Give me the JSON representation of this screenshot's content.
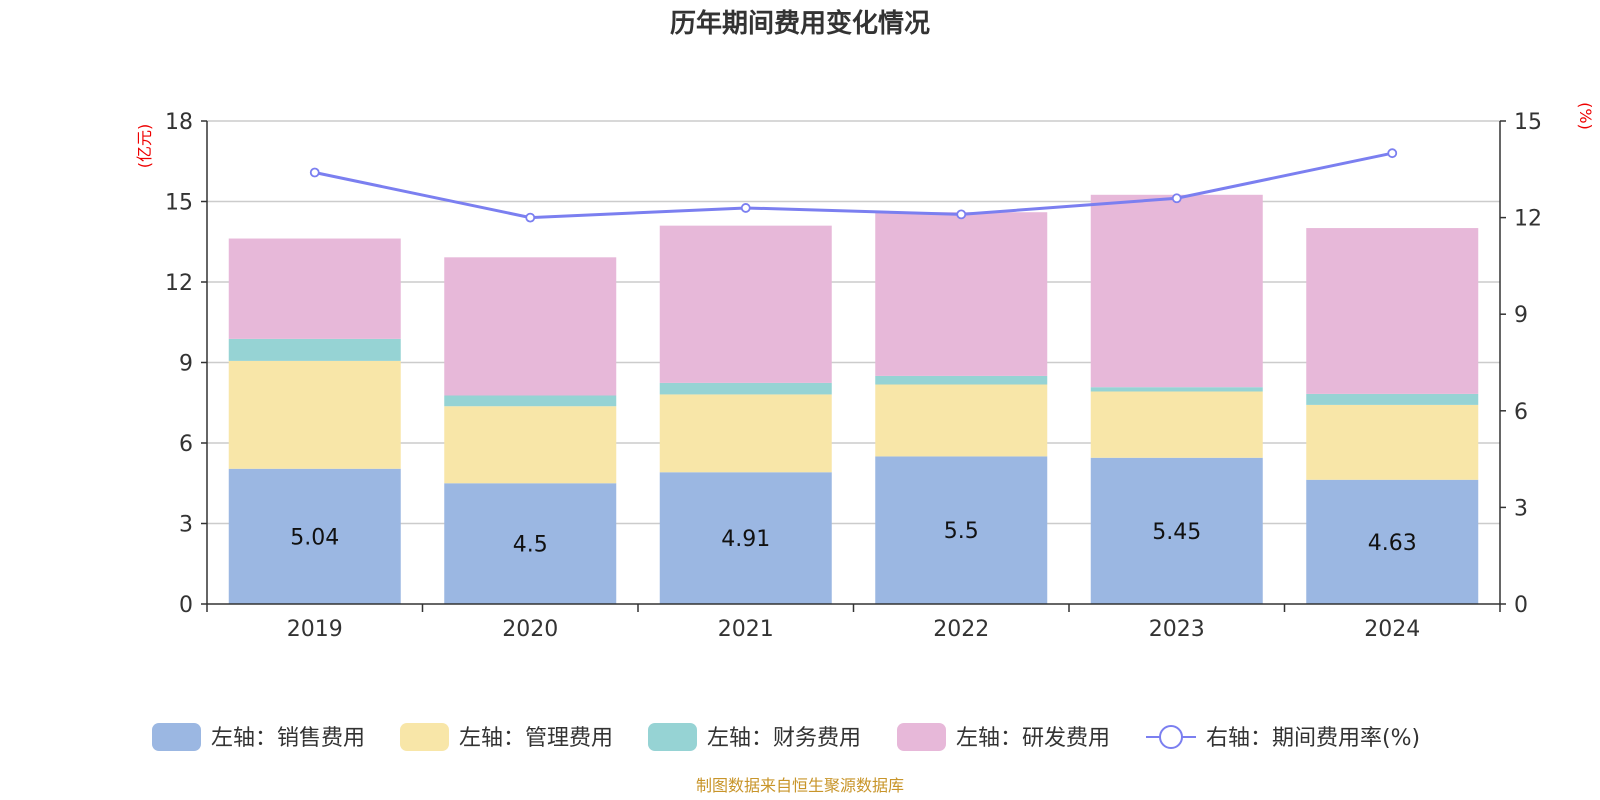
{
  "title": "历年期间费用变化情况",
  "source": "制图数据来自恒生聚源数据库",
  "colors": {
    "sales": "#9bb7e2",
    "admin": "#f8e6a8",
    "finance": "#96d3d4",
    "rnd": "#e7b8d9",
    "rate_line": "#7b7ff0",
    "unit_text": "#ee0000",
    "source_text": "#c8952a",
    "grid": "#cccccc",
    "axis": "#333333"
  },
  "chart_data": {
    "type": "bar",
    "stacked": true,
    "title": "历年期间费用变化情况",
    "categories": [
      "2019",
      "2020",
      "2021",
      "2022",
      "2023",
      "2024"
    ],
    "left_axis": {
      "unit": "(亿元)",
      "ticks": [
        "0",
        "3",
        "6",
        "9",
        "12",
        "15",
        "18"
      ],
      "ylim": [
        0,
        18
      ]
    },
    "right_axis": {
      "unit": "(%)",
      "ticks": [
        "0",
        "3",
        "6",
        "9",
        "12",
        "15"
      ],
      "ylim": [
        0,
        15
      ]
    },
    "series": [
      {
        "key": "sales",
        "name": "左轴：销售费用",
        "axis": "left",
        "values": [
          5.04,
          4.5,
          4.91,
          5.5,
          5.45,
          4.63
        ],
        "labels": [
          "5.04",
          "4.5",
          "4.91",
          "5.5",
          "5.45",
          "4.63"
        ]
      },
      {
        "key": "admin",
        "name": "左轴：管理费用",
        "axis": "left",
        "values": [
          4.02,
          2.87,
          2.9,
          2.68,
          2.47,
          2.79
        ]
      },
      {
        "key": "finance",
        "name": "左轴：财务费用",
        "axis": "left",
        "values": [
          0.82,
          0.4,
          0.43,
          0.32,
          0.16,
          0.41
        ]
      },
      {
        "key": "rnd",
        "name": "左轴：研发费用",
        "axis": "left",
        "values": [
          3.74,
          5.15,
          5.86,
          6.1,
          7.17,
          6.18
        ]
      }
    ],
    "line": {
      "name": "右轴：期间费用率(%)",
      "axis": "right",
      "values": [
        13.4,
        12.0,
        12.3,
        12.1,
        12.6,
        14.0
      ]
    },
    "legend_position": "bottom"
  }
}
